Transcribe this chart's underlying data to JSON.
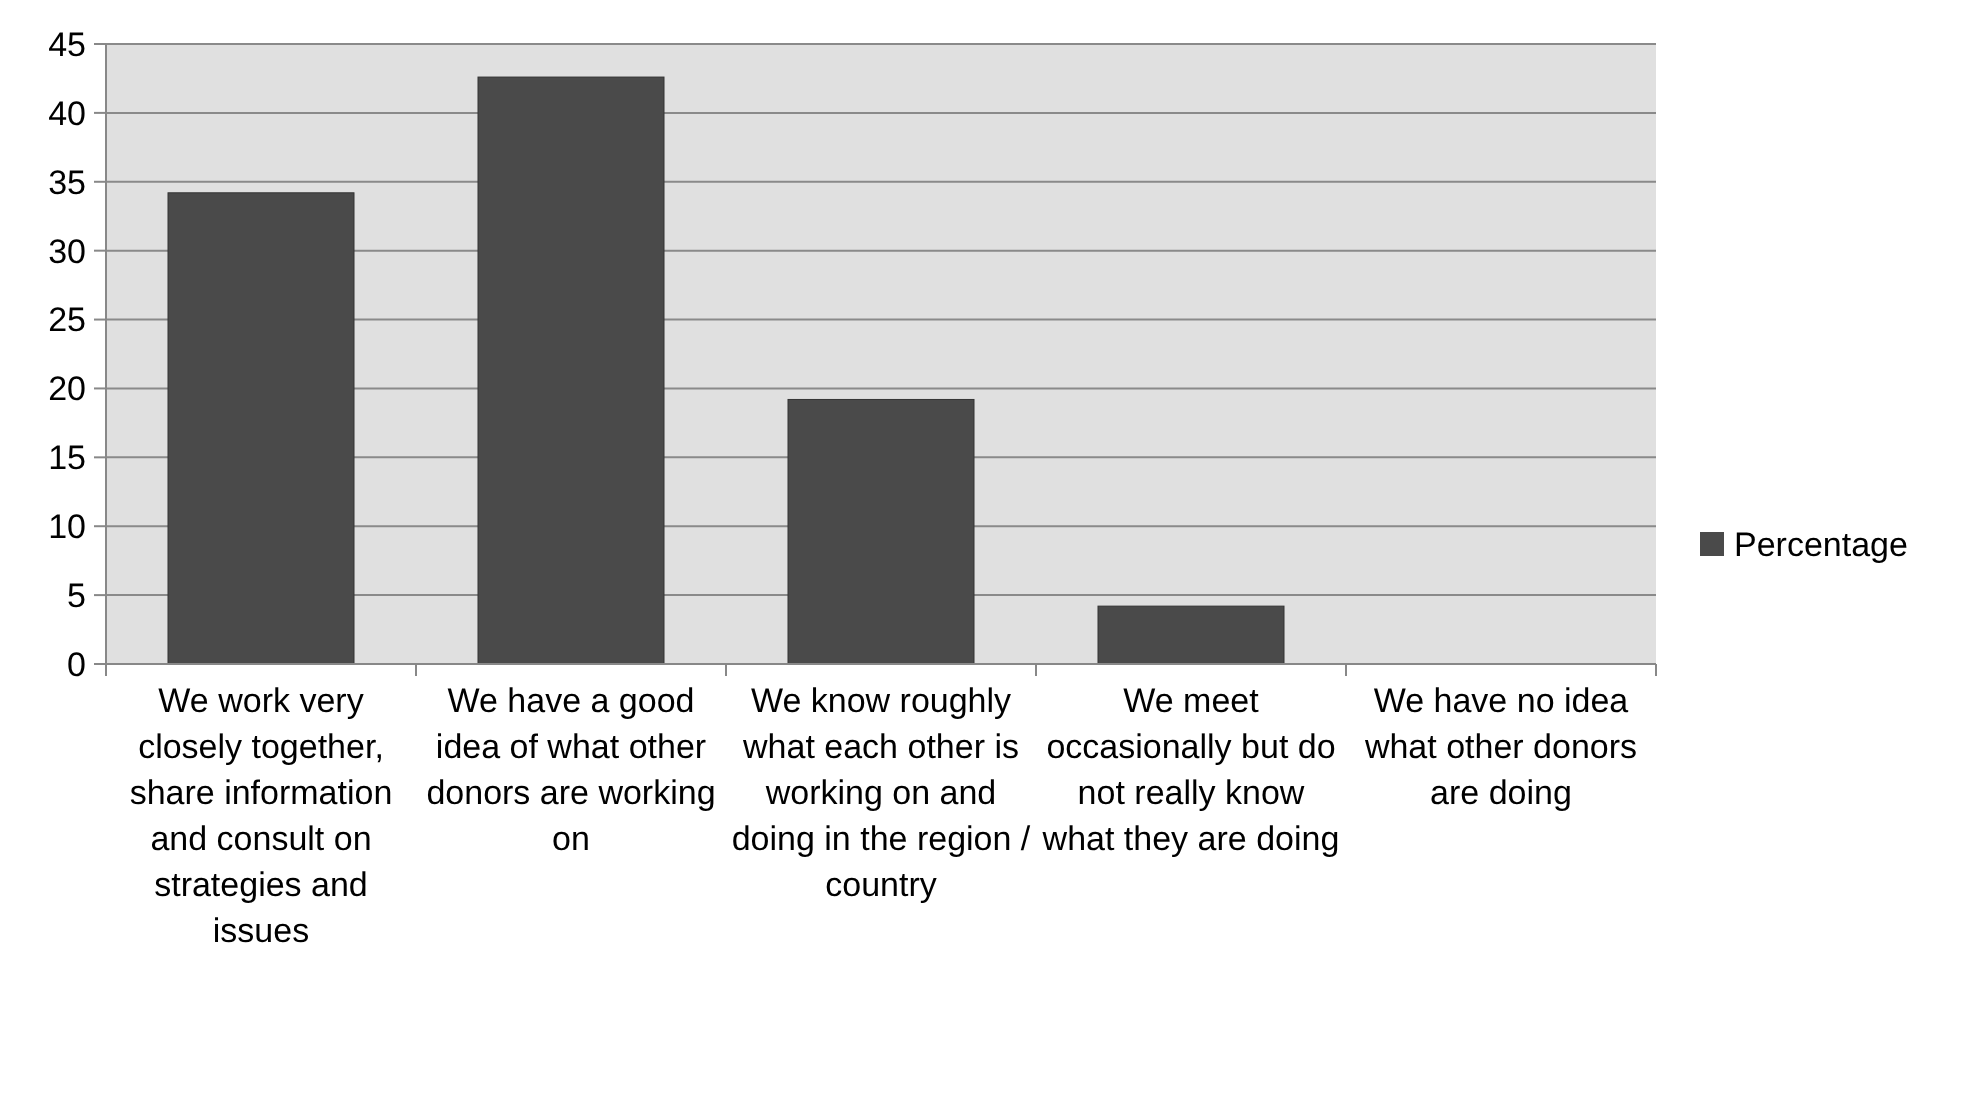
{
  "chart_data": {
    "type": "bar",
    "categories": [
      "We work very closely together, share information and consult on strategies and issues",
      "We have a good idea of what other donors are working on",
      "We know roughly what each other is working on and doing in the region / country",
      "We meet occasionally but do not really know what they are doing",
      "We have no idea what other donors are doing"
    ],
    "series": [
      {
        "name": "Percentage",
        "color": "#4a4a4a",
        "values": [
          34.2,
          42.6,
          19.2,
          4.2,
          0
        ]
      }
    ],
    "ylim": [
      0,
      45
    ],
    "yticks": [
      0,
      5,
      10,
      15,
      20,
      25,
      30,
      35,
      40,
      45
    ],
    "grid": "y",
    "legend": "right"
  }
}
